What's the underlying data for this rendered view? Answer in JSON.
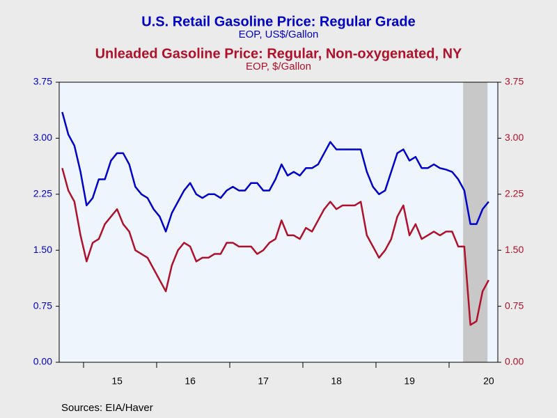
{
  "chart_data": {
    "type": "line",
    "series": [
      {
        "name": "U.S. Retail Gasoline Price: Regular Grade",
        "units": "EOP, US$/Gallon",
        "color": "#0000c8",
        "axis": "y",
        "values": [
          3.35,
          3.05,
          2.9,
          2.55,
          2.1,
          2.2,
          2.45,
          2.45,
          2.7,
          2.8,
          2.8,
          2.65,
          2.35,
          2.25,
          2.2,
          2.05,
          1.95,
          1.75,
          2.0,
          2.15,
          2.3,
          2.4,
          2.25,
          2.2,
          2.25,
          2.25,
          2.2,
          2.3,
          2.35,
          2.3,
          2.3,
          2.4,
          2.4,
          2.3,
          2.3,
          2.45,
          2.65,
          2.5,
          2.55,
          2.5,
          2.6,
          2.6,
          2.65,
          2.8,
          2.95,
          2.85,
          2.85,
          2.85,
          2.85,
          2.85,
          2.55,
          2.35,
          2.25,
          2.3,
          2.55,
          2.8,
          2.85,
          2.7,
          2.75,
          2.6,
          2.6,
          2.65,
          2.6,
          2.58,
          2.55,
          2.45,
          2.3,
          1.85,
          1.85,
          2.05,
          2.15
        ]
      },
      {
        "name": "Unleaded Gasoline Price: Regular, Non-oxygenated, NY",
        "units": "EOP, $/Gallon",
        "color": "#b0102a",
        "axis": "y2",
        "values": [
          2.6,
          2.3,
          2.15,
          1.7,
          1.35,
          1.6,
          1.65,
          1.85,
          1.95,
          2.05,
          1.85,
          1.75,
          1.5,
          1.45,
          1.4,
          1.25,
          1.1,
          0.95,
          1.3,
          1.5,
          1.6,
          1.55,
          1.35,
          1.4,
          1.4,
          1.45,
          1.45,
          1.6,
          1.6,
          1.55,
          1.55,
          1.55,
          1.45,
          1.5,
          1.6,
          1.65,
          1.9,
          1.7,
          1.7,
          1.65,
          1.8,
          1.75,
          1.9,
          2.05,
          2.15,
          2.05,
          2.1,
          2.1,
          2.1,
          2.15,
          1.7,
          1.55,
          1.4,
          1.5,
          1.65,
          1.95,
          2.1,
          1.7,
          1.85,
          1.65,
          1.7,
          1.75,
          1.7,
          1.75,
          1.75,
          1.55,
          1.55,
          0.5,
          0.55,
          0.95,
          1.1
        ]
      }
    ],
    "categories": [
      null,
      null,
      null,
      null,
      null,
      null,
      null,
      null,
      null,
      "15",
      null,
      null,
      null,
      null,
      null,
      null,
      null,
      null,
      null,
      null,
      null,
      "16",
      null,
      null,
      null,
      null,
      null,
      null,
      null,
      null,
      null,
      null,
      null,
      "17",
      null,
      null,
      null,
      null,
      null,
      null,
      null,
      null,
      null,
      null,
      null,
      "18",
      null,
      null,
      null,
      null,
      null,
      null,
      null,
      null,
      null,
      null,
      null,
      "19",
      null,
      null,
      null,
      null,
      null,
      null,
      null,
      null,
      null,
      null,
      null,
      null,
      "20"
    ],
    "ylim": [
      0,
      3.75
    ],
    "yticks": [
      {
        "value": 0,
        "label": "0.00"
      },
      {
        "value": 0.75,
        "label": "0.75"
      },
      {
        "value": 1.5,
        "label": "1.50"
      },
      {
        "value": 2.25,
        "label": "2.25"
      },
      {
        "value": 3,
        "label": "3.00"
      },
      {
        "value": 3.75,
        "label": "3.75"
      }
    ],
    "y2lim": [
      0,
      3.75
    ],
    "y2ticks": [
      {
        "value": 0,
        "label": "0.00"
      },
      {
        "value": 0.75,
        "label": "0.75"
      },
      {
        "value": 1.5,
        "label": "1.50"
      },
      {
        "value": 2.25,
        "label": "2.25"
      },
      {
        "value": 3,
        "label": "3.00"
      },
      {
        "value": 3.75,
        "label": "3.75"
      }
    ],
    "source": "Sources:  EIA/Haver"
  }
}
